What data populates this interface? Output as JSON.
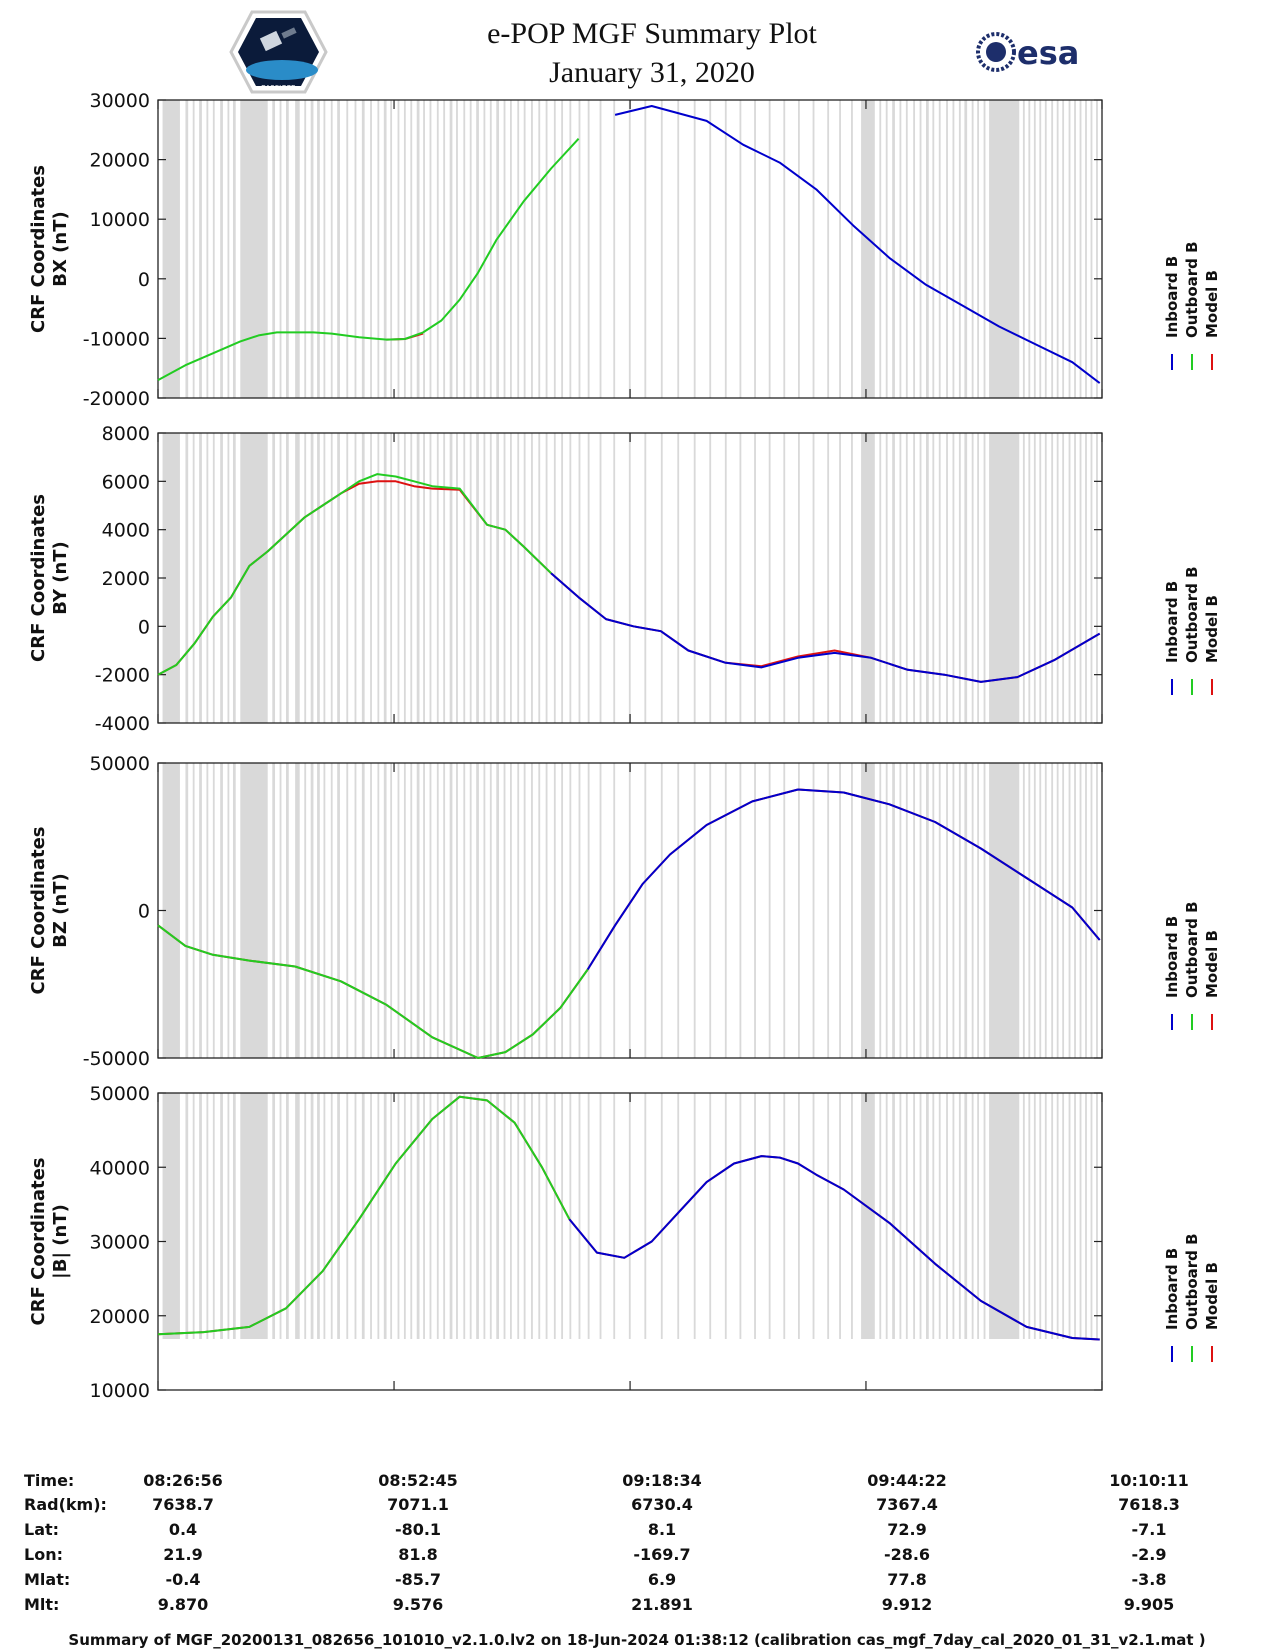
{
  "header": {
    "title_line1": "e-POP MGF Summary Plot",
    "title_line2": "January 31, 2020",
    "logo_left_text": "CASSIOPE",
    "logo_right_text": "esa"
  },
  "colors": {
    "inboard": "#0000cc",
    "outboard": "#22cc22",
    "model": "#dd1111",
    "shade": "#d9d9d9"
  },
  "legend_labels": [
    "Inboard B",
    "Outboard B",
    "Model B"
  ],
  "chart_data": [
    {
      "type": "line",
      "ylabel_line1": "CRF Coordinates",
      "ylabel_line2": "BX (nT)",
      "ylim": [
        -20000,
        30000
      ],
      "yticks": [
        30000,
        20000,
        10000,
        0,
        -10000,
        -20000
      ],
      "x_minutes": [
        0,
        3,
        6,
        9,
        11,
        13,
        15,
        17,
        19,
        22,
        25,
        27,
        29,
        31,
        33,
        35,
        37,
        40,
        43,
        46,
        50,
        54,
        60,
        64,
        68,
        72,
        76,
        80,
        84,
        88,
        92,
        96,
        100,
        103
      ],
      "series": [
        {
          "name": "Inboard B",
          "start": 47,
          "values": [
            -17000,
            -14500,
            -12500,
            -10500,
            -9500,
            -9000,
            -9000,
            -9000,
            -9200,
            -9800,
            -10200,
            -10100,
            -9000,
            -7000,
            -3500,
            1000,
            6500,
            13000,
            18500,
            23500,
            27500,
            29000,
            26500,
            22500,
            19500,
            15000,
            9000,
            3500,
            -1000,
            -4500,
            -8000,
            -11000,
            -14000,
            -17500
          ]
        },
        {
          "name": "Outboard B",
          "end": 48,
          "values": [
            -17000,
            -14500,
            -12500,
            -10500,
            -9500,
            -9000,
            -9000,
            -9000,
            -9200,
            -9800,
            -10200,
            -10100,
            -9000,
            -7000,
            -3500,
            1000,
            6500,
            13000,
            18500,
            23500,
            27500,
            29000,
            26500,
            22500,
            19500,
            15000,
            9000,
            3500,
            -1000,
            -4500,
            -8000,
            -11000,
            -14000,
            -17500
          ]
        },
        {
          "name": "Model B",
          "start": 25,
          "end": 30,
          "values": [
            -17000,
            -14500,
            -12500,
            -10500,
            -9500,
            -9000,
            -9000,
            -9000,
            -9200,
            -9800,
            -10200,
            -10100,
            -9200,
            -7200,
            -3500,
            1000,
            6500,
            13000,
            18500,
            23500,
            27500,
            29000,
            26500,
            22500,
            19500,
            15000,
            9000,
            3500,
            -1000,
            -4500,
            -8000,
            -11000,
            -14000,
            -17500
          ]
        }
      ]
    },
    {
      "type": "line",
      "ylabel_line1": "CRF Coordinates",
      "ylabel_line2": "BY (nT)",
      "ylim": [
        -4000,
        8000
      ],
      "yticks": [
        8000,
        6000,
        4000,
        2000,
        0,
        -2000,
        -4000
      ],
      "x_minutes": [
        0,
        2,
        4,
        6,
        8,
        10,
        12,
        14,
        16,
        18,
        20,
        22,
        24,
        26,
        28,
        30,
        33,
        36,
        38,
        40,
        43,
        46,
        49,
        52,
        55,
        58,
        62,
        66,
        70,
        74,
        78,
        82,
        86,
        90,
        94,
        98,
        103
      ],
      "series": [
        {
          "name": "Inboard B",
          "start": 43,
          "values": [
            -2000,
            -1600,
            -700,
            400,
            1200,
            2500,
            3100,
            3800,
            4500,
            5000,
            5500,
            6000,
            6200,
            6100,
            5900,
            5800,
            5700,
            4200,
            4000,
            3300,
            2200,
            1200,
            300,
            0,
            -200,
            -1000,
            -1500,
            -1700,
            -1300,
            -1100,
            -1300,
            -1800,
            -2000,
            -2300,
            -2100,
            -1400,
            -300
          ]
        },
        {
          "name": "Outboard B",
          "end": 44,
          "values": [
            -2000,
            -1600,
            -700,
            400,
            1200,
            2500,
            3100,
            3800,
            4500,
            5000,
            5500,
            6000,
            6300,
            6200,
            6000,
            5800,
            5700,
            4200,
            4000,
            3300,
            2200,
            1200,
            300,
            0,
            -200,
            -1000,
            -1500,
            -1700,
            -1300,
            -1100,
            -1300,
            -1800,
            -2000,
            -2300,
            -2100,
            -1400,
            -300
          ]
        },
        {
          "name": "Model B",
          "values": [
            -2000,
            -1600,
            -700,
            400,
            1200,
            2500,
            3100,
            3800,
            4500,
            5000,
            5500,
            5900,
            6000,
            6000,
            5800,
            5700,
            5650,
            4200,
            4000,
            3300,
            2200,
            1200,
            300,
            0,
            -200,
            -1000,
            -1500,
            -1650,
            -1250,
            -1000,
            -1300,
            -1800,
            -2000,
            -2300,
            -2100,
            -1400,
            -300
          ]
        }
      ]
    },
    {
      "type": "line",
      "ylabel_line1": "CRF Coordinates",
      "ylabel_line2": "BZ (nT)",
      "ylim": [
        -50000,
        50000
      ],
      "yticks": [
        50000,
        0,
        -50000
      ],
      "x_minutes": [
        0,
        3,
        6,
        10,
        15,
        20,
        25,
        30,
        35,
        38,
        41,
        44,
        47,
        50,
        53,
        56,
        60,
        65,
        70,
        75,
        80,
        85,
        90,
        95,
        100,
        103
      ],
      "series": [
        {
          "name": "Inboard B",
          "start": 47,
          "values": [
            -5000,
            -12000,
            -15000,
            -17000,
            -19000,
            -24000,
            -32000,
            -43000,
            -50000,
            -48000,
            -42000,
            -33000,
            -20000,
            -5000,
            9000,
            19000,
            29000,
            37000,
            41000,
            40000,
            36000,
            30000,
            21000,
            11000,
            1000,
            -10000
          ]
        },
        {
          "name": "Outboard B",
          "end": 48,
          "values": [
            -5000,
            -12000,
            -15000,
            -17000,
            -19000,
            -24000,
            -32000,
            -43000,
            -50000,
            -48000,
            -42000,
            -33000,
            -20000,
            -5000,
            9000,
            19000,
            29000,
            37000,
            41000,
            40000,
            36000,
            30000,
            21000,
            11000,
            1000,
            -10000
          ]
        },
        {
          "name": "Model B",
          "values": [
            -5000,
            -12000,
            -15000,
            -17000,
            -19000,
            -24000,
            -32000,
            -43000,
            -50000,
            -48000,
            -42000,
            -33000,
            -20000,
            -5000,
            9000,
            19000,
            29000,
            37000,
            41000,
            40000,
            36000,
            30000,
            21000,
            11000,
            1000,
            -10000
          ]
        }
      ]
    },
    {
      "type": "line",
      "ylabel_line1": "CRF Coordinates",
      "ylabel_line2": "|B| (nT)",
      "ylim": [
        10000,
        50000
      ],
      "yticks": [
        50000,
        40000,
        30000,
        20000,
        10000
      ],
      "x_minutes": [
        0,
        5,
        10,
        14,
        18,
        22,
        26,
        30,
        33,
        36,
        39,
        42,
        45,
        48,
        51,
        54,
        57,
        60,
        63,
        66,
        68,
        70,
        72,
        75,
        80,
        85,
        90,
        95,
        100,
        103
      ],
      "series": [
        {
          "name": "Inboard B",
          "start": 45,
          "values": [
            17500,
            17800,
            18500,
            21000,
            26000,
            33000,
            40500,
            46500,
            49500,
            49000,
            46000,
            40000,
            33000,
            28500,
            27800,
            30000,
            34000,
            38000,
            40500,
            41500,
            41300,
            40500,
            39000,
            37000,
            32500,
            27000,
            22000,
            18500,
            17000,
            16800
          ]
        },
        {
          "name": "Outboard B",
          "end": 46,
          "values": [
            17500,
            17800,
            18500,
            21000,
            26000,
            33000,
            40500,
            46500,
            49500,
            49000,
            46000,
            40000,
            33000,
            28500,
            27800,
            30000,
            34000,
            38000,
            40500,
            41500,
            41300,
            40500,
            39000,
            37000,
            32500,
            27000,
            22000,
            18500,
            17000,
            16800
          ]
        },
        {
          "name": "Model B",
          "values": [
            17500,
            17800,
            18500,
            21000,
            26000,
            33000,
            40500,
            46500,
            49500,
            49000,
            46000,
            40000,
            33000,
            28500,
            27800,
            30000,
            34000,
            38000,
            40500,
            41500,
            41300,
            40500,
            39000,
            37000,
            32500,
            27000,
            22000,
            18500,
            17000,
            16800
          ]
        }
      ]
    }
  ],
  "x_axis": {
    "x_minutes_ticks": [
      0,
      25.8167,
      51.6333,
      77.4333,
      103.25
    ],
    "ephemeris_labels": [
      "Time:",
      "Rad(km):",
      "Lat:",
      "Lon:",
      "Mlat:",
      "Mlt:"
    ],
    "ephemeris": [
      [
        "08:26:56",
        "08:52:45",
        "09:18:34",
        "09:44:22",
        "10:10:11"
      ],
      [
        "7638.7",
        "7071.1",
        "6730.4",
        "7367.4",
        "7618.3"
      ],
      [
        "0.4",
        "-80.1",
        "8.1",
        "72.9",
        "-7.1"
      ],
      [
        "21.9",
        "81.8",
        "-169.7",
        "-28.6",
        "-2.9"
      ],
      [
        "-0.4",
        "-85.7",
        "6.9",
        "77.8",
        "-3.8"
      ],
      [
        "9.870",
        "9.576",
        "21.891",
        "9.912",
        "9.905"
      ]
    ]
  },
  "shaded_bands_minutes": [
    [
      0.5,
      2.4
    ],
    [
      3.0,
      3.3
    ],
    [
      3.8,
      4.0
    ],
    [
      4.5,
      4.8
    ],
    [
      5.3,
      5.5
    ],
    [
      6.0,
      6.2
    ],
    [
      6.8,
      7.1
    ],
    [
      7.6,
      7.8
    ],
    [
      8.2,
      8.5
    ],
    [
      9.0,
      12.0
    ],
    [
      12.5,
      12.8
    ],
    [
      13.3,
      13.5
    ],
    [
      14.0,
      14.3
    ],
    [
      15.0,
      15.5
    ],
    [
      16.0,
      16.2
    ],
    [
      16.7,
      17.0
    ],
    [
      17.4,
      17.7
    ],
    [
      18.1,
      18.3
    ],
    [
      18.9,
      19.1
    ],
    [
      19.6,
      19.9
    ],
    [
      20.6,
      20.8
    ],
    [
      21.5,
      21.7
    ],
    [
      22.3,
      22.6
    ],
    [
      23.2,
      23.4
    ],
    [
      24.0,
      24.2
    ],
    [
      24.7,
      25.0
    ],
    [
      25.4,
      25.6
    ],
    [
      26.2,
      26.4
    ],
    [
      26.9,
      27.1
    ],
    [
      27.6,
      27.8
    ],
    [
      28.3,
      28.6
    ],
    [
      29.0,
      29.2
    ],
    [
      29.7,
      29.9
    ],
    [
      30.5,
      30.7
    ],
    [
      31.2,
      31.4
    ],
    [
      31.9,
      32.2
    ],
    [
      32.6,
      32.8
    ],
    [
      33.4,
      33.6
    ],
    [
      34.1,
      34.3
    ],
    [
      34.8,
      35.1
    ],
    [
      35.6,
      35.8
    ],
    [
      36.3,
      36.5
    ],
    [
      37.0,
      37.3
    ],
    [
      37.8,
      38.0
    ],
    [
      38.5,
      38.7
    ],
    [
      39.3,
      39.5
    ],
    [
      40.0,
      40.2
    ],
    [
      40.8,
      41.0
    ],
    [
      41.6,
      41.8
    ],
    [
      42.4,
      42.6
    ],
    [
      43.3,
      43.5
    ],
    [
      44.1,
      44.3
    ],
    [
      45.0,
      45.2
    ],
    [
      46.0,
      46.2
    ],
    [
      47.0,
      47.2
    ],
    [
      48.3,
      48.5
    ],
    [
      49.8,
      50.0
    ],
    [
      51.5,
      51.7
    ],
    [
      53.2,
      53.4
    ],
    [
      55.0,
      55.2
    ],
    [
      56.8,
      57.0
    ],
    [
      58.6,
      58.8
    ],
    [
      60.3,
      60.5
    ],
    [
      62.0,
      62.2
    ],
    [
      63.6,
      63.8
    ],
    [
      65.2,
      65.4
    ],
    [
      66.8,
      67.0
    ],
    [
      68.4,
      68.6
    ],
    [
      70.0,
      70.2
    ],
    [
      71.6,
      71.8
    ],
    [
      73.2,
      73.4
    ],
    [
      74.5,
      74.7
    ],
    [
      75.8,
      76.0
    ],
    [
      76.9,
      78.4
    ],
    [
      78.9,
      79.1
    ],
    [
      79.6,
      79.8
    ],
    [
      80.3,
      80.6
    ],
    [
      81.1,
      81.3
    ],
    [
      81.8,
      82.0
    ],
    [
      82.6,
      82.8
    ],
    [
      83.3,
      83.5
    ],
    [
      84.0,
      84.3
    ],
    [
      84.7,
      84.9
    ],
    [
      85.4,
      85.6
    ],
    [
      86.2,
      86.4
    ],
    [
      86.9,
      87.1
    ],
    [
      87.6,
      87.8
    ],
    [
      88.2,
      88.5
    ],
    [
      89.0,
      89.2
    ],
    [
      89.6,
      89.8
    ],
    [
      90.3,
      90.5
    ],
    [
      90.9,
      94.2
    ],
    [
      94.6,
      94.8
    ],
    [
      95.2,
      95.4
    ],
    [
      95.8,
      96.0
    ],
    [
      96.4,
      96.6
    ],
    [
      97.0,
      97.2
    ],
    [
      97.7,
      97.9
    ],
    [
      98.3,
      98.5
    ],
    [
      98.9,
      99.1
    ],
    [
      99.6,
      99.8
    ],
    [
      100.2,
      100.4
    ],
    [
      100.8,
      101.0
    ],
    [
      101.4,
      101.6
    ],
    [
      102.0,
      102.2
    ],
    [
      102.6,
      102.8
    ]
  ],
  "footer": "Summary of MGF_20200131_082656_101010_v2.1.0.lv2 on 18-Jun-2024 01:38:12 (calibration cas_mgf_7day_cal_2020_01_31_v2.1.mat )"
}
